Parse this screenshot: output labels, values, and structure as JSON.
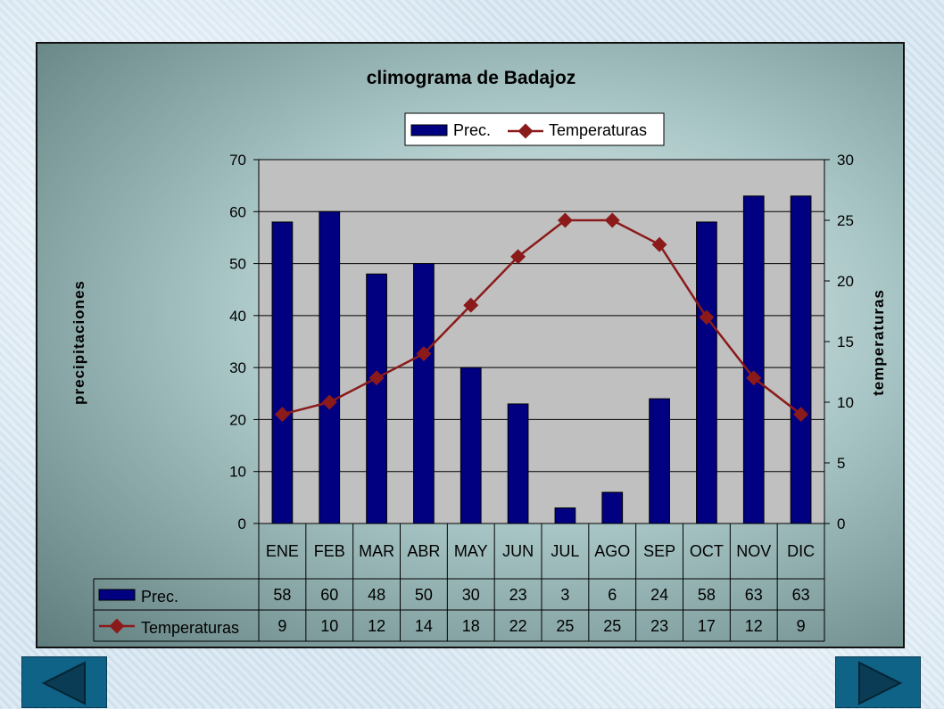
{
  "chart_data": {
    "type": "bar+line",
    "title": "climograma de Badajoz",
    "categories": [
      "ENE",
      "FEB",
      "MAR",
      "ABR",
      "MAY",
      "JUN",
      "JUL",
      "AGO",
      "SEP",
      "OCT",
      "NOV",
      "DIC"
    ],
    "series": [
      {
        "name": "Prec.",
        "type": "bar",
        "axis": "left",
        "color": "#000080",
        "values": [
          58,
          60,
          48,
          50,
          30,
          23,
          3,
          6,
          24,
          58,
          63,
          63
        ]
      },
      {
        "name": "Temperaturas",
        "type": "line",
        "axis": "right",
        "color": "#8b1a1a",
        "values": [
          9,
          10,
          12,
          14,
          18,
          22,
          25,
          25,
          23,
          17,
          12,
          9
        ]
      }
    ],
    "ylabel": "precipitaciones",
    "y2label": "temperaturas",
    "ylim": [
      0,
      70
    ],
    "y2lim": [
      0,
      30
    ],
    "yticks": [
      0,
      10,
      20,
      30,
      40,
      50,
      60,
      70
    ],
    "y2ticks": [
      0,
      5,
      10,
      15,
      20,
      25,
      30
    ],
    "grid": true,
    "legend": "top-center",
    "data_table": true
  }
}
